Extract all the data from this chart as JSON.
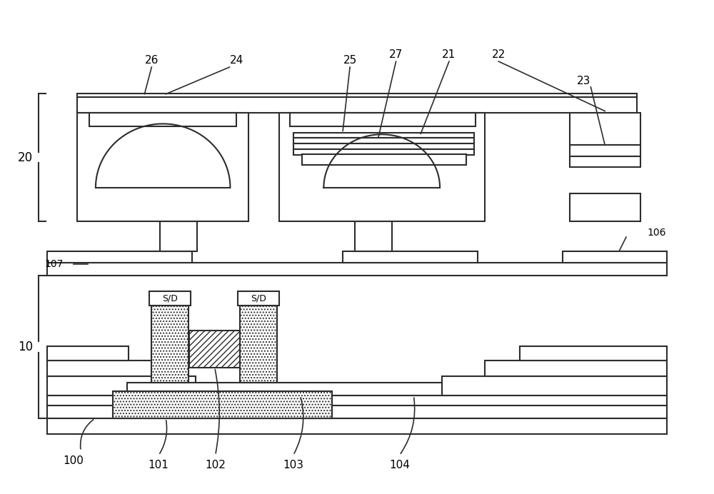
{
  "bg_color": "#ffffff",
  "line_color": "#2d2d2d",
  "lw": 1.5,
  "fig_w": 10.0,
  "fig_h": 6.92
}
